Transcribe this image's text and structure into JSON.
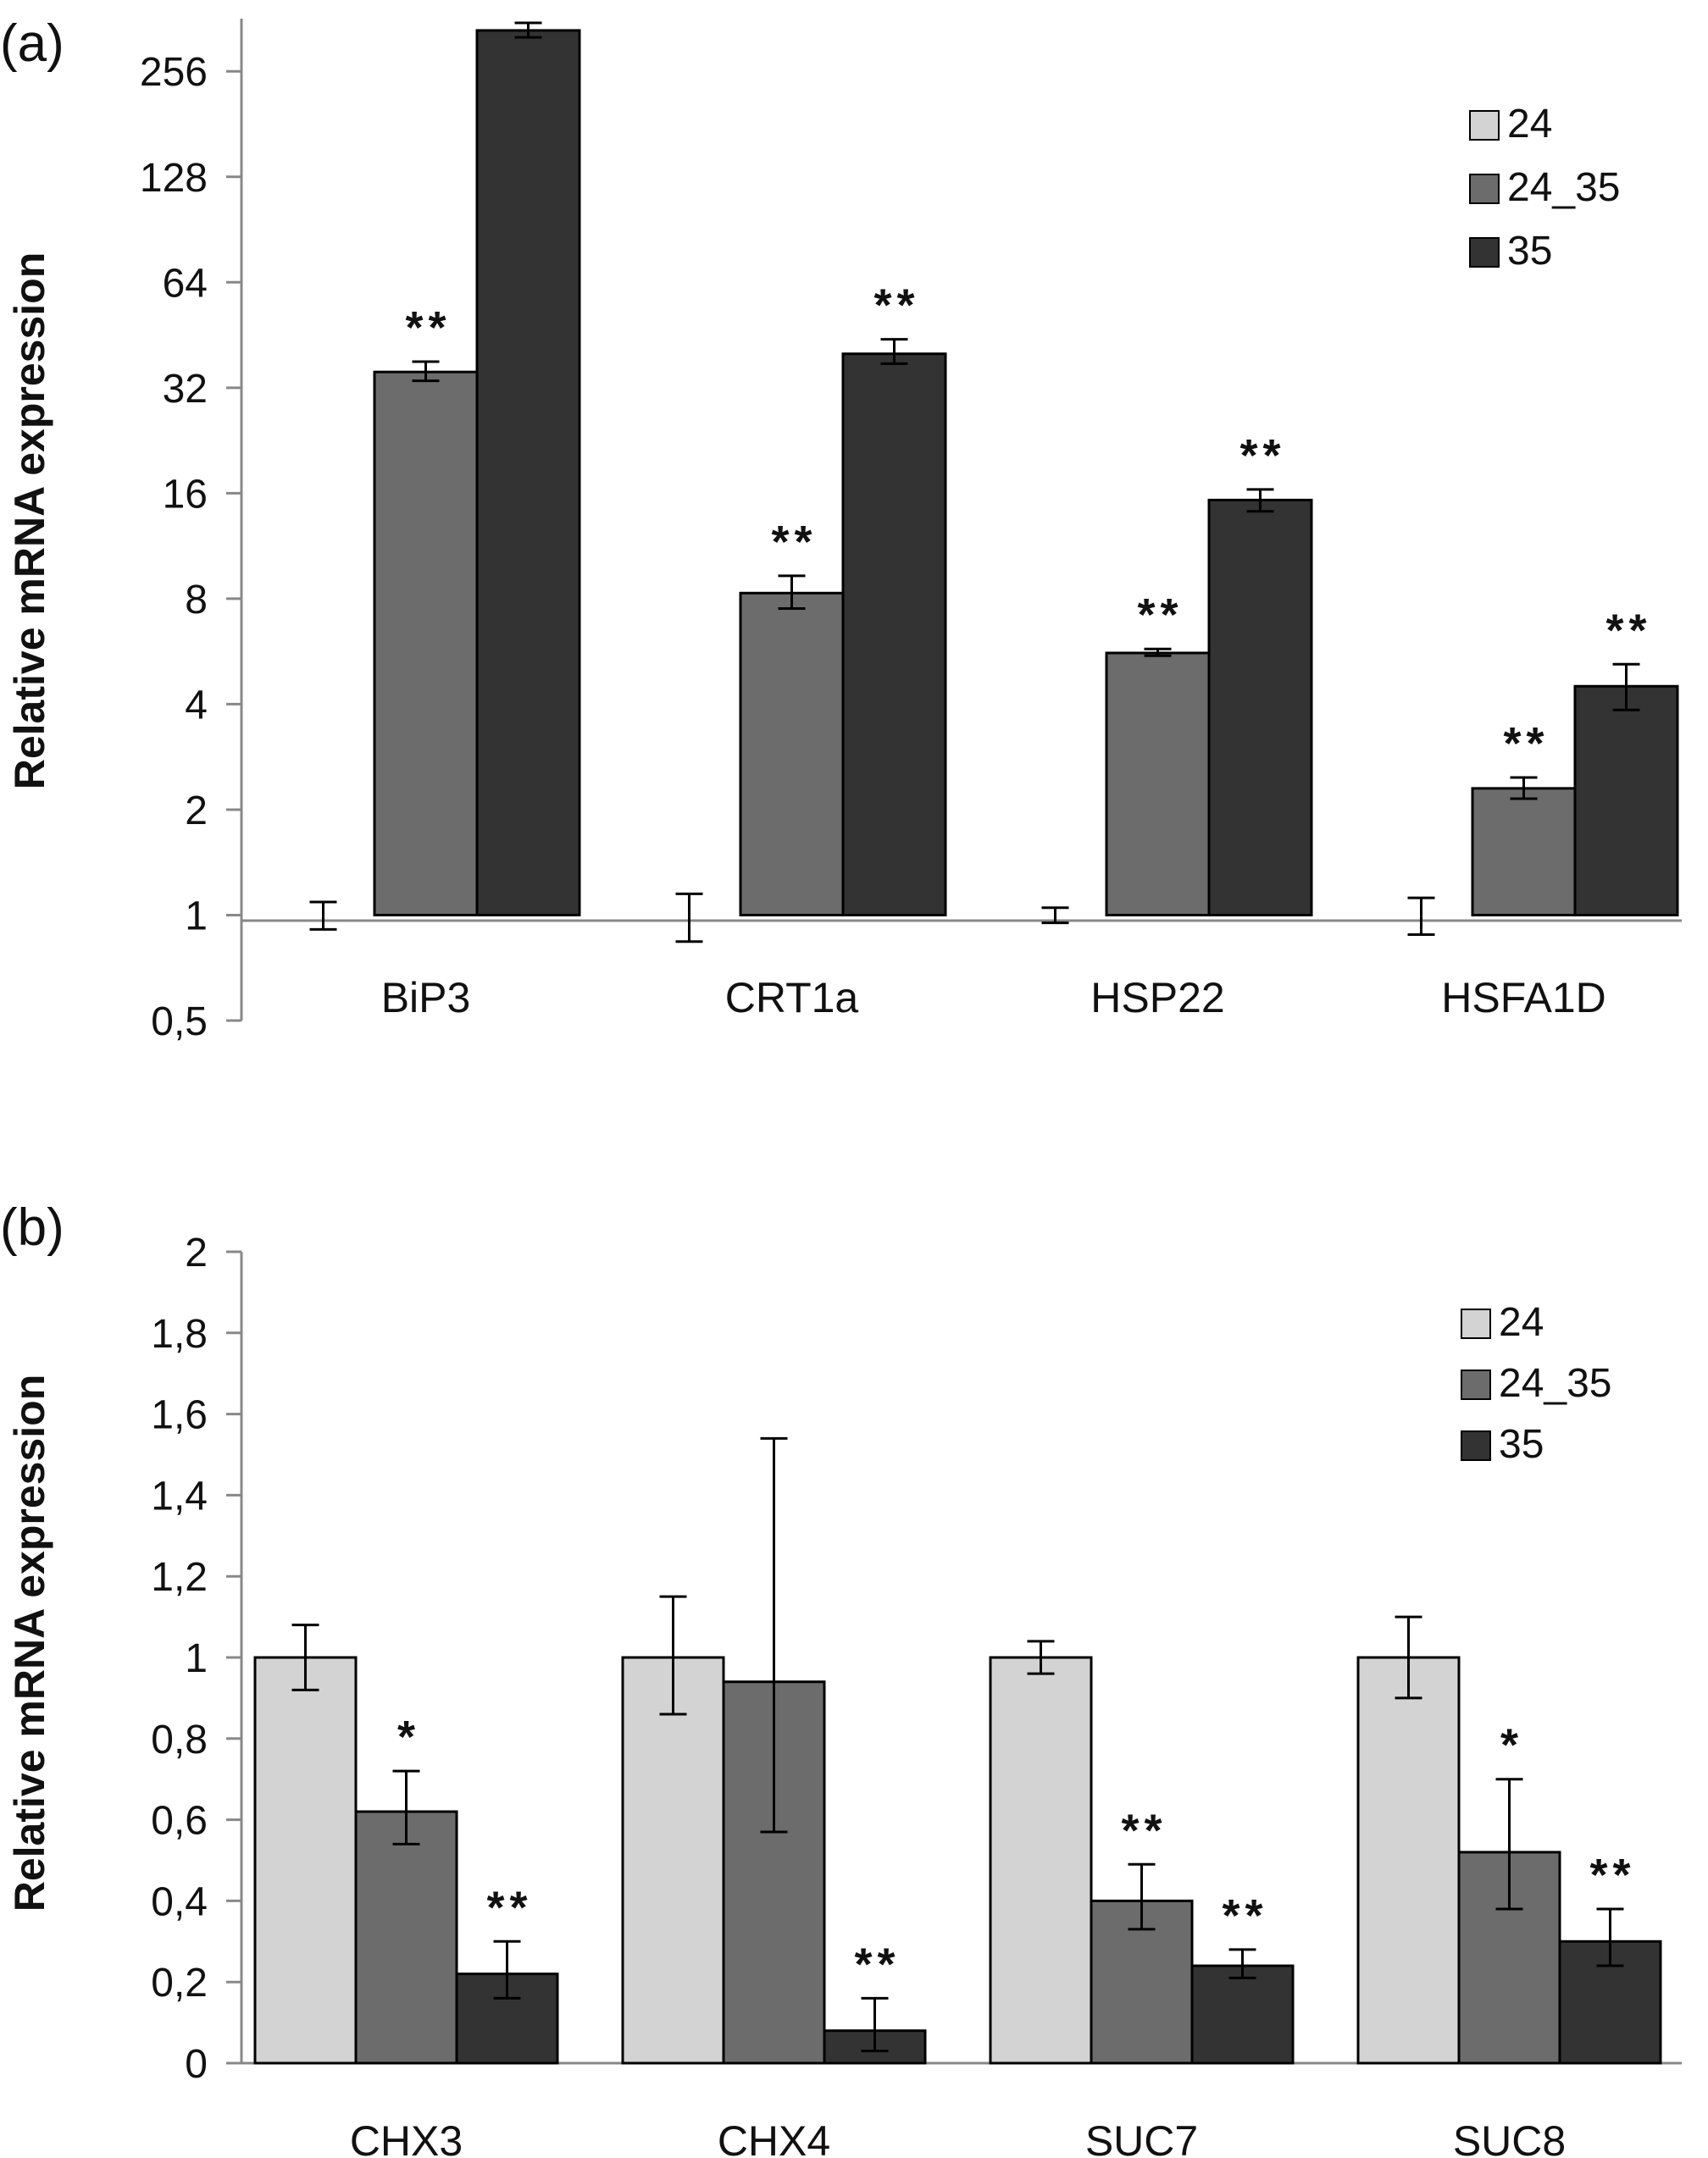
{
  "chart_data": [
    {
      "panel": "(a)",
      "type": "bar",
      "ylabel": "Relative mRNA expression",
      "yscale": "log2",
      "ylim": [
        0.5,
        362
      ],
      "yticks": [
        "0,5",
        "1",
        "2",
        "4",
        "8",
        "16",
        "32",
        "64",
        "128",
        "256"
      ],
      "ytick_values": [
        0.5,
        1,
        2,
        4,
        8,
        16,
        32,
        64,
        128,
        256
      ],
      "categories": [
        "BiP3",
        "CRT1a",
        "HSP22",
        "HSFA1D"
      ],
      "series": [
        {
          "name": "24",
          "color": "#d3d3d3",
          "values": [
            1,
            1,
            1,
            1
          ],
          "err_low": [
            0.91,
            0.84,
            0.95,
            0.88
          ],
          "err_high": [
            1.09,
            1.15,
            1.05,
            1.12
          ],
          "sig": [
            "",
            "",
            "",
            ""
          ]
        },
        {
          "name": "24_35",
          "color": "#6c6c6c",
          "values": [
            35.5,
            8.3,
            5.6,
            2.3
          ],
          "err_low": [
            33.5,
            7.5,
            5.5,
            2.15
          ],
          "err_high": [
            38,
            9.3,
            5.75,
            2.47
          ],
          "sig": [
            "**",
            "**",
            "**",
            "**"
          ]
        },
        {
          "name": "35",
          "color": "#333333",
          "values": [
            335,
            40,
            15.3,
            4.5
          ],
          "err_low": [
            320,
            37.5,
            14.2,
            3.85
          ],
          "err_high": [
            352,
            44,
            16.4,
            5.2
          ],
          "sig": [
            "**",
            "**",
            "**",
            "**"
          ]
        }
      ],
      "legend": [
        "24",
        "24_35",
        "35"
      ],
      "legend_position": "top-right",
      "grid": false
    },
    {
      "panel": "(b)",
      "type": "bar",
      "ylabel": "Relative mRNA expression",
      "ylim": [
        0,
        2
      ],
      "yticks": [
        "0",
        "0,2",
        "0,4",
        "0,6",
        "0,8",
        "1",
        "1,2",
        "1,4",
        "1,6",
        "1,8",
        "2"
      ],
      "ytick_values": [
        0,
        0.2,
        0.4,
        0.6,
        0.8,
        1,
        1.2,
        1.4,
        1.6,
        1.8,
        2
      ],
      "categories": [
        "CHX3",
        "CHX4",
        "SUC7",
        "SUC8"
      ],
      "series": [
        {
          "name": "24",
          "color": "#d3d3d3",
          "values": [
            1,
            1,
            1,
            1
          ],
          "err_low": [
            0.92,
            0.86,
            0.96,
            0.9
          ],
          "err_high": [
            1.08,
            1.15,
            1.04,
            1.1
          ],
          "sig": [
            "",
            "",
            "",
            ""
          ]
        },
        {
          "name": "24_35",
          "color": "#6c6c6c",
          "values": [
            0.62,
            0.94,
            0.4,
            0.52
          ],
          "err_low": [
            0.54,
            0.57,
            0.33,
            0.38
          ],
          "err_high": [
            0.72,
            1.54,
            0.49,
            0.7
          ],
          "sig": [
            "*",
            "",
            "**",
            "*"
          ]
        },
        {
          "name": "35",
          "color": "#333333",
          "values": [
            0.22,
            0.08,
            0.24,
            0.3
          ],
          "err_low": [
            0.16,
            0.03,
            0.21,
            0.24
          ],
          "err_high": [
            0.3,
            0.16,
            0.28,
            0.38
          ],
          "sig": [
            "**",
            "**",
            "**",
            "**"
          ]
        }
      ],
      "legend": [
        "24",
        "24_35",
        "35"
      ],
      "legend_position": "top-right",
      "grid": false
    }
  ]
}
